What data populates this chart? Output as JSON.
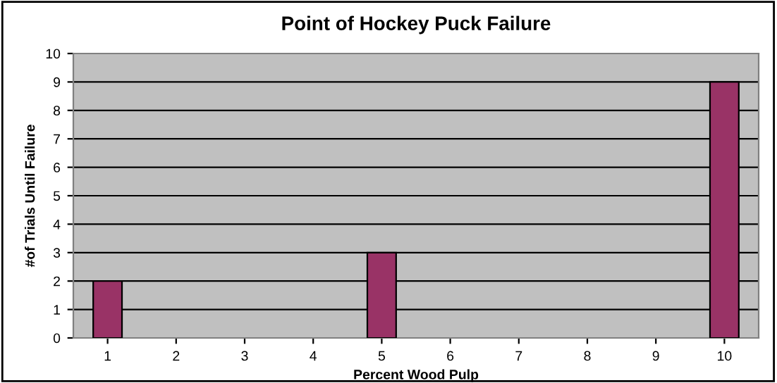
{
  "chart_data": {
    "type": "bar",
    "title": "Point of Hockey Puck Failure",
    "xlabel": "Percent Wood Pulp",
    "ylabel": "#of Trials Until Failure",
    "categories": [
      "1",
      "2",
      "3",
      "4",
      "5",
      "6",
      "7",
      "8",
      "9",
      "10"
    ],
    "series": [
      {
        "color": "#993366",
        "values": [
          2,
          0,
          0,
          0,
          3,
          0,
          0,
          0,
          0,
          9
        ]
      }
    ],
    "ylim": [
      0,
      10
    ],
    "yticks": [
      0,
      1,
      2,
      3,
      4,
      5,
      6,
      7,
      8,
      9,
      10
    ],
    "grid": "y",
    "legend": false
  }
}
